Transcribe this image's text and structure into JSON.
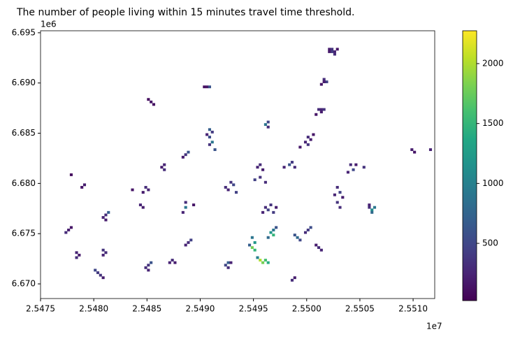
{
  "chart_data": {
    "type": "raster",
    "title": "The number of people living within 15 minutes travel time threshold.",
    "x_offset_label": "1e7",
    "y_offset_label": "1e6",
    "colormap": "viridis",
    "clim": [
      22,
      2274
    ],
    "colorbar_ticks": [
      500,
      1000,
      1500,
      2000
    ],
    "xlim": [
      25475000,
      25512030
    ],
    "ylim": [
      6668540,
      6695200
    ],
    "xticks": [
      {
        "value": 25475000,
        "label": "2.5475"
      },
      {
        "value": 25480000,
        "label": "2.5480"
      },
      {
        "value": 25485000,
        "label": "2.5485"
      },
      {
        "value": 25490000,
        "label": "2.5490"
      },
      {
        "value": 25495000,
        "label": "2.5495"
      },
      {
        "value": 25500000,
        "label": "2.5500"
      },
      {
        "value": 25505000,
        "label": "2.5505"
      },
      {
        "value": 25510000,
        "label": "2.5510"
      }
    ],
    "yticks": [
      {
        "value": 6670000,
        "label": "6.670"
      },
      {
        "value": 6675000,
        "label": "6.675"
      },
      {
        "value": 6680000,
        "label": "6.680"
      },
      {
        "value": 6685000,
        "label": "6.685"
      },
      {
        "value": 6690000,
        "label": "6.690"
      },
      {
        "value": 6695000,
        "label": "6.695"
      }
    ],
    "x": [
      25502000,
      25502250,
      25502500,
      25502250,
      25502750,
      25502500,
      25502000,
      25501500,
      25501750,
      25501500,
      25501250,
      25490500,
      25490750,
      25490250,
      25485000,
      25485250,
      25485500,
      25501000,
      25501250,
      25501500,
      25501250,
      25500750,
      25496250,
      25496000,
      25496250,
      25490750,
      25491000,
      25490750,
      25491000,
      25490750,
      25491250,
      25490500,
      25500000,
      25500250,
      25499750,
      25500500,
      25500000,
      25499250,
      25509750,
      25510000,
      25511500,
      25488500,
      25488750,
      25488250,
      25486500,
      25486500,
      25486250,
      25495500,
      25495250,
      25495750,
      25495500,
      25495000,
      25496000,
      25498500,
      25498250,
      25498750,
      25497750,
      25504000,
      25504250,
      25503750,
      25504500,
      25505250,
      25479000,
      25478750,
      25477750,
      25484750,
      25485000,
      25484500,
      25483500,
      25502750,
      25503000,
      25502500,
      25503250,
      25502750,
      25503000,
      25492750,
      25493000,
      25492250,
      25493250,
      25492500,
      25481000,
      25481250,
      25480750,
      25481000,
      25484250,
      25484500,
      25488500,
      25488500,
      25488250,
      25489250,
      25496000,
      25496250,
      25496500,
      25495750,
      25496750,
      25497000,
      25505750,
      25506000,
      25506250,
      25506000,
      25505750,
      25477500,
      25477250,
      25477750,
      25478250,
      25478500,
      25478250,
      25480750,
      25481000,
      25480750,
      25480250,
      25480500,
      25480000,
      25480750,
      25485000,
      25485250,
      25484750,
      25485000,
      25487250,
      25487000,
      25487500,
      25488750,
      25489000,
      25488500,
      25492500,
      25492500,
      25492250,
      25492750,
      25495000,
      25494750,
      25495000,
      25494750,
      25494500,
      25495500,
      25495750,
      25496000,
      25496250,
      25495250,
      25496500,
      25496750,
      25496750,
      25496250,
      25497000,
      25500000,
      25500250,
      25499750,
      25501000,
      25501250,
      25500750,
      25498750,
      25498500,
      25499000,
      25498750,
      25499250
    ],
    "y": [
      6693250,
      6693250,
      6693000,
      6693000,
      6693250,
      6692750,
      6693000,
      6690250,
      6690000,
      6690000,
      6689750,
      6689500,
      6689500,
      6689500,
      6688250,
      6688000,
      6687750,
      6687250,
      6687250,
      6687250,
      6687000,
      6686750,
      6686000,
      6685750,
      6685500,
      6685250,
      6685000,
      6684500,
      6684000,
      6683750,
      6683250,
      6684750,
      6684500,
      6684250,
      6684000,
      6684750,
      6683750,
      6683500,
      6683250,
      6683000,
      6683250,
      6682750,
      6683000,
      6682500,
      6681750,
      6681250,
      6681500,
      6681750,
      6681500,
      6681250,
      6680500,
      6680250,
      6680000,
      6682000,
      6681750,
      6681500,
      6681500,
      6681750,
      6681250,
      6681000,
      6681750,
      6681500,
      6679750,
      6679500,
      6680750,
      6679500,
      6679250,
      6679000,
      6679250,
      6679500,
      6679000,
      6678750,
      6678500,
      6678000,
      6677500,
      6680000,
      6679750,
      6679500,
      6679000,
      6679250,
      6676750,
      6677000,
      6676500,
      6676250,
      6677750,
      6677500,
      6678000,
      6677500,
      6677000,
      6677750,
      6677500,
      6677250,
      6677750,
      6677000,
      6677000,
      6677500,
      6677500,
      6677250,
      6677500,
      6677000,
      6677750,
      6675250,
      6675000,
      6675500,
      6673000,
      6672750,
      6672500,
      6673250,
      6673000,
      6672750,
      6671000,
      6670750,
      6671250,
      6670500,
      6671750,
      6672000,
      6671500,
      6671250,
      6672250,
      6672000,
      6672000,
      6674000,
      6674250,
      6673750,
      6672000,
      6671500,
      6671750,
      6672000,
      6673250,
      6673500,
      6674000,
      6674500,
      6673750,
      6672250,
      6672000,
      6672250,
      6672000,
      6672500,
      6675000,
      6674750,
      6675250,
      6674500,
      6675500,
      6675250,
      6675500,
      6675000,
      6673500,
      6673250,
      6673750,
      6670500,
      6670250,
      6674500,
      6674750,
      6674250
    ],
    "values": [
      200,
      350,
      250,
      400,
      150,
      300,
      180,
      300,
      450,
      200,
      150,
      150,
      600,
      120,
      100,
      150,
      120,
      300,
      250,
      350,
      200,
      150,
      500,
      900,
      300,
      700,
      400,
      550,
      900,
      350,
      600,
      250,
      300,
      200,
      250,
      150,
      350,
      180,
      200,
      150,
      250,
      350,
      600,
      200,
      250,
      300,
      200,
      300,
      250,
      200,
      350,
      450,
      300,
      400,
      600,
      300,
      250,
      300,
      500,
      250,
      200,
      350,
      200,
      150,
      100,
      300,
      250,
      200,
      150,
      300,
      450,
      250,
      200,
      350,
      300,
      350,
      500,
      300,
      450,
      250,
      300,
      700,
      250,
      200,
      250,
      200,
      300,
      900,
      250,
      150,
      300,
      450,
      350,
      250,
      400,
      200,
      300,
      1100,
      900,
      800,
      250,
      200,
      300,
      150,
      250,
      200,
      300,
      350,
      300,
      250,
      400,
      350,
      500,
      200,
      350,
      600,
      300,
      250,
      300,
      250,
      200,
      300,
      450,
      250,
      700,
      300,
      500,
      250,
      1500,
      1800,
      1200,
      900,
      700,
      2000,
      1800,
      1600,
      1400,
      1000,
      1200,
      1500,
      900,
      800,
      600,
      400,
      550,
      300,
      300,
      250,
      200,
      200,
      300,
      800,
      600,
      500
    ]
  }
}
